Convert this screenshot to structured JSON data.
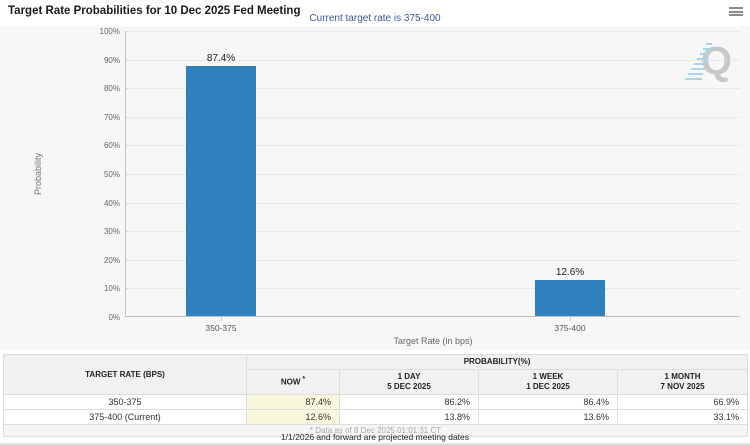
{
  "header": {
    "title": "Target Rate Probabilities for 10 Dec 2025 Fed Meeting",
    "menu_icon": "hamburger-icon"
  },
  "chart": {
    "subtitle": "Current target rate is 375-400",
    "watermark_letter": "Q"
  },
  "chart_data": {
    "type": "bar",
    "categories": [
      "350-375",
      "375-400"
    ],
    "values": [
      87.4,
      12.6
    ],
    "value_labels": [
      "87.4%",
      "12.6%"
    ],
    "title": "",
    "xlabel": "Target Rate (in bps)",
    "ylabel": "Probability",
    "ylim": [
      0,
      100
    ],
    "ytick_step": 10,
    "ytick_suffix": "%",
    "grid": "horizontal-dotted",
    "legend": "none",
    "bar_color": "#2f81bd",
    "plot_bg": "#f7f7f7"
  },
  "table": {
    "col1_header": "TARGET RATE (BPS)",
    "group_header": "PROBABILITY(%)",
    "subcolumns": [
      {
        "title": "NOW",
        "sup": "*",
        "date": ""
      },
      {
        "title": "1 DAY",
        "sup": "",
        "date": "5 DEC 2025"
      },
      {
        "title": "1 WEEK",
        "sup": "",
        "date": "1 DEC 2025"
      },
      {
        "title": "1 MONTH",
        "sup": "",
        "date": "7 NOV 2025"
      }
    ],
    "rows": [
      {
        "rate": "350-375",
        "values": [
          "87.4%",
          "86.2%",
          "86.4%",
          "66.9%"
        ]
      },
      {
        "rate": "375-400 (Current)",
        "values": [
          "12.6%",
          "13.8%",
          "13.6%",
          "33.1%"
        ]
      }
    ],
    "footnote": "* Data as of 8 Dec 2025 01:01:31 CT"
  },
  "footer": {
    "note": "1/1/2026 and forward are projected meeting dates"
  }
}
